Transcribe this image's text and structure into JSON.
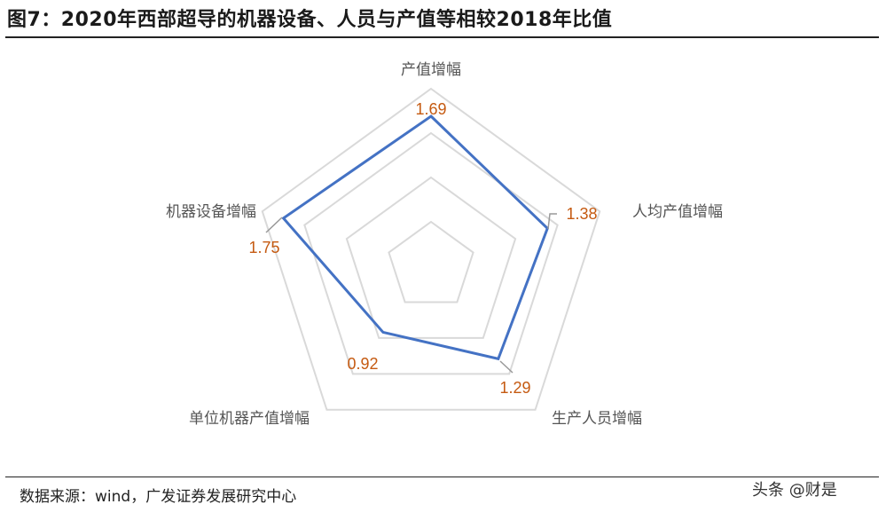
{
  "title": "图7：2020年西部超导的机器设备、人员与产值等相较2018年比值",
  "source": "数据来源：wind，广发证券发展研究中心",
  "watermark": "头条 @财是",
  "chart_data": {
    "type": "radar",
    "categories": [
      "产值增幅",
      "人均产值增幅",
      "生产人员增幅",
      "单位机器产值增幅",
      "机器设备增幅"
    ],
    "values": [
      1.69,
      1.38,
      1.29,
      0.92,
      1.75
    ],
    "data_labels": [
      "1.69",
      "1.38",
      "1.29",
      "0.92",
      "1.75"
    ],
    "rlim": [
      0,
      2
    ],
    "grid_step": 0.5,
    "grid": true,
    "legend": "none",
    "colors": {
      "series": "#4472c4",
      "labels": "#c55a11",
      "grid": "#d9d9d9"
    }
  }
}
